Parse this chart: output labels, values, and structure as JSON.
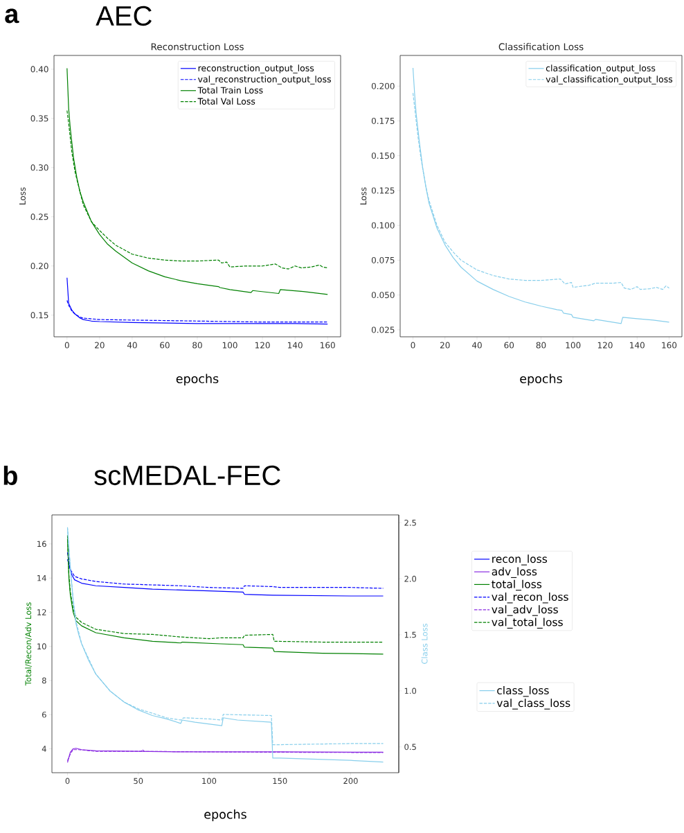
{
  "chart_data": [
    {
      "type": "line",
      "title": "Reconstruction Loss",
      "xlabel": "epochs",
      "ylabel": "Loss",
      "annotations": [
        "a",
        "AEC"
      ],
      "legend": "top right",
      "xlim": [
        -8,
        168
      ],
      "ylim": [
        0.128,
        0.414
      ],
      "xticks": [
        0,
        20,
        40,
        60,
        80,
        100,
        120,
        140,
        160
      ],
      "yticks": [
        0.15,
        {
          "value": 0.2,
          "label": "0.20"
        },
        0.25,
        {
          "value": 0.3,
          "label": "0.30"
        },
        0.35,
        {
          "value": 0.4,
          "label": "0.40"
        }
      ],
      "series": [
        {
          "name": "reconstruction_output_loss",
          "color": "#0000ff",
          "line_style": "solid",
          "x": [
            0,
            1,
            3,
            5,
            8,
            10,
            15,
            20,
            40,
            60,
            80,
            100,
            120,
            140,
            160
          ],
          "values": [
            0.188,
            0.162,
            0.155,
            0.151,
            0.147,
            0.1455,
            0.144,
            0.1435,
            0.1425,
            0.142,
            0.1415,
            0.1415,
            0.1415,
            0.1415,
            0.141
          ]
        },
        {
          "name": "val_reconstruction_output_loss",
          "color": "#0000ff",
          "line_style": "dashed",
          "x": [
            0,
            1,
            3,
            5,
            8,
            10,
            20,
            40,
            60,
            80,
            100,
            120,
            140,
            160
          ],
          "values": [
            0.165,
            0.16,
            0.154,
            0.151,
            0.148,
            0.147,
            0.1455,
            0.145,
            0.1445,
            0.144,
            0.1435,
            0.143,
            0.143,
            0.143
          ]
        },
        {
          "name": "Total Train Loss",
          "color": "#008000",
          "line_style": "solid",
          "x": [
            0,
            1,
            2,
            4,
            6,
            8,
            10,
            15,
            20,
            25,
            30,
            40,
            50,
            60,
            70,
            80,
            93,
            94,
            100,
            113,
            114,
            130,
            131,
            145,
            160
          ],
          "values": [
            0.401,
            0.36,
            0.34,
            0.31,
            0.29,
            0.275,
            0.265,
            0.245,
            0.232,
            0.222,
            0.215,
            0.203,
            0.195,
            0.189,
            0.185,
            0.182,
            0.179,
            0.178,
            0.176,
            0.173,
            0.175,
            0.172,
            0.176,
            0.174,
            0.171
          ]
        },
        {
          "name": "Total Val Loss",
          "color": "#008000",
          "line_style": "dashed",
          "x": [
            0,
            1,
            3,
            5,
            8,
            10,
            15,
            20,
            25,
            30,
            40,
            50,
            60,
            70,
            80,
            93,
            95,
            98,
            100,
            110,
            120,
            128,
            132,
            136,
            140,
            144,
            150,
            155,
            157,
            160
          ],
          "values": [
            0.358,
            0.345,
            0.315,
            0.295,
            0.275,
            0.262,
            0.245,
            0.236,
            0.228,
            0.221,
            0.212,
            0.208,
            0.206,
            0.205,
            0.205,
            0.206,
            0.203,
            0.204,
            0.199,
            0.2,
            0.2,
            0.202,
            0.198,
            0.197,
            0.2,
            0.198,
            0.199,
            0.201,
            0.199,
            0.198
          ]
        }
      ]
    },
    {
      "type": "line",
      "title": "Classification Loss",
      "xlabel": "epochs",
      "ylabel": "Loss",
      "legend": "top right",
      "xlim": [
        -8,
        168
      ],
      "ylim": [
        0.02,
        0.222
      ],
      "xticks": [
        0,
        20,
        40,
        60,
        80,
        100,
        120,
        140,
        160
      ],
      "yticks": [
        0.025,
        {
          "value": 0.05,
          "label": "0.050"
        },
        0.075,
        {
          "value": 0.1,
          "label": "0.100"
        },
        0.125,
        {
          "value": 0.15,
          "label": "0.150"
        },
        0.175,
        {
          "value": 0.2,
          "label": "0.200"
        }
      ],
      "series": [
        {
          "name": "classification_output_loss",
          "color": "#87ceeb",
          "line_style": "solid",
          "x": [
            0,
            1,
            2,
            4,
            6,
            8,
            10,
            15,
            20,
            25,
            30,
            40,
            50,
            60,
            70,
            80,
            90,
            93,
            94,
            99,
            100,
            113,
            114,
            130,
            131,
            140,
            150,
            160
          ],
          "values": [
            0.213,
            0.195,
            0.18,
            0.16,
            0.142,
            0.128,
            0.116,
            0.098,
            0.086,
            0.077,
            0.07,
            0.06,
            0.054,
            0.049,
            0.045,
            0.042,
            0.0395,
            0.039,
            0.037,
            0.036,
            0.034,
            0.0315,
            0.0325,
            0.0295,
            0.034,
            0.033,
            0.032,
            0.0305
          ]
        },
        {
          "name": "val_classification_output_loss",
          "color": "#87ceeb",
          "line_style": "dashed",
          "x": [
            0,
            1,
            3,
            5,
            8,
            10,
            15,
            20,
            25,
            30,
            40,
            50,
            60,
            70,
            80,
            92,
            95,
            99,
            100,
            110,
            114,
            125,
            130,
            132,
            136,
            140,
            142,
            148,
            152,
            156,
            158,
            160
          ],
          "values": [
            0.195,
            0.185,
            0.165,
            0.148,
            0.128,
            0.118,
            0.1,
            0.088,
            0.081,
            0.075,
            0.068,
            0.064,
            0.0615,
            0.0605,
            0.0605,
            0.0615,
            0.058,
            0.059,
            0.0555,
            0.057,
            0.0585,
            0.0585,
            0.059,
            0.055,
            0.054,
            0.056,
            0.054,
            0.0545,
            0.0555,
            0.054,
            0.0565,
            0.055
          ]
        }
      ]
    },
    {
      "type": "line",
      "xlabel": "epochs",
      "ylabel": "Total/Recon/Adv Loss",
      "y2label": "Class Loss",
      "annotations": [
        "b",
        "scMEDAL-FEC"
      ],
      "legend": "right",
      "xlim": [
        -11,
        234
      ],
      "ylim": [
        2.6,
        17.7
      ],
      "y2lim": [
        0.27,
        2.57
      ],
      "xticks": [
        0,
        50,
        100,
        150,
        200
      ],
      "yticks": [
        4,
        6,
        8,
        10,
        12,
        14,
        16
      ],
      "y2ticks": [
        0.5,
        {
          "value": 1,
          "label": "1.0"
        },
        1.5,
        {
          "value": 2,
          "label": "2.0"
        },
        2.5
      ],
      "series": [
        {
          "name": "recon_loss",
          "color": "#0000ff",
          "line_style": "solid",
          "x": [
            0,
            1,
            3,
            5,
            10,
            20,
            40,
            60,
            80,
            100,
            124,
            125,
            145,
            200,
            223
          ],
          "values": [
            15.1,
            14.8,
            14.2,
            13.9,
            13.7,
            13.55,
            13.45,
            13.35,
            13.3,
            13.25,
            13.18,
            13.05,
            13.0,
            12.95,
            12.95
          ]
        },
        {
          "name": "adv_loss",
          "color": "#8a2be2",
          "line_style": "solid",
          "x": [
            0,
            1,
            2,
            4,
            6,
            10,
            20,
            50,
            80,
            100,
            150,
            223
          ],
          "values": [
            3.2,
            3.5,
            3.8,
            4.0,
            4.03,
            3.95,
            3.88,
            3.85,
            3.82,
            3.82,
            3.82,
            3.8
          ]
        },
        {
          "name": "total_loss",
          "color": "#008000",
          "line_style": "solid",
          "x": [
            0,
            1,
            2,
            4,
            6,
            10,
            20,
            40,
            60,
            80,
            81,
            108,
            124,
            125,
            145,
            146,
            180,
            223
          ],
          "values": [
            16.3,
            14.0,
            13.0,
            12.0,
            11.5,
            11.2,
            10.8,
            10.5,
            10.3,
            10.2,
            10.25,
            10.15,
            10.1,
            9.95,
            9.9,
            9.7,
            9.6,
            9.55
          ]
        },
        {
          "name": "val_recon_loss",
          "color": "#0000ff",
          "line_style": "dashed",
          "x": [
            0,
            2,
            5,
            10,
            20,
            40,
            60,
            80,
            100,
            124,
            125,
            145,
            150,
            200,
            223
          ],
          "values": [
            15.5,
            14.5,
            14.1,
            13.95,
            13.8,
            13.65,
            13.6,
            13.55,
            13.45,
            13.4,
            13.55,
            13.5,
            13.45,
            13.45,
            13.4
          ]
        },
        {
          "name": "val_adv_loss",
          "color": "#8a2be2",
          "line_style": "dashed",
          "x": [
            0,
            2,
            4,
            8,
            20,
            52,
            53,
            54,
            100,
            150,
            223
          ],
          "values": [
            3.3,
            3.7,
            3.95,
            3.95,
            3.85,
            3.85,
            3.95,
            3.85,
            3.82,
            3.8,
            3.78
          ]
        },
        {
          "name": "val_total_loss",
          "color": "#008000",
          "line_style": "dashed",
          "x": [
            0,
            1,
            2,
            4,
            6,
            10,
            20,
            40,
            60,
            80,
            100,
            108,
            124,
            125,
            145,
            146,
            180,
            223
          ],
          "values": [
            16.5,
            14.2,
            13.2,
            12.2,
            11.7,
            11.4,
            11.0,
            10.75,
            10.7,
            10.55,
            10.45,
            10.5,
            10.5,
            10.65,
            10.7,
            10.3,
            10.25,
            10.25
          ]
        },
        {
          "name": "class_loss",
          "color": "#87ceeb",
          "line_style": "solid",
          "axis": "y2",
          "x": [
            0,
            2,
            4,
            6,
            8,
            10,
            15,
            20,
            30,
            40,
            50,
            60,
            70,
            80,
            81,
            90,
            109,
            110,
            120,
            144,
            145,
            150,
            200,
            223
          ],
          "values": [
            2.45,
            2.1,
            1.8,
            1.6,
            1.5,
            1.42,
            1.27,
            1.15,
            1.0,
            0.9,
            0.83,
            0.78,
            0.75,
            0.71,
            0.74,
            0.72,
            0.69,
            0.76,
            0.74,
            0.72,
            0.4,
            0.4,
            0.38,
            0.365
          ]
        },
        {
          "name": "val_class_loss",
          "color": "#87ceeb",
          "line_style": "dashed",
          "axis": "y2",
          "x": [
            0,
            2,
            4,
            6,
            10,
            20,
            30,
            40,
            50,
            60,
            70,
            80,
            82,
            100,
            109,
            110,
            144,
            145,
            150,
            200,
            223
          ],
          "values": [
            2.46,
            2.1,
            1.82,
            1.62,
            1.42,
            1.15,
            1.0,
            0.9,
            0.84,
            0.8,
            0.76,
            0.74,
            0.76,
            0.75,
            0.74,
            0.79,
            0.78,
            0.52,
            0.52,
            0.53,
            0.53
          ]
        }
      ]
    }
  ]
}
